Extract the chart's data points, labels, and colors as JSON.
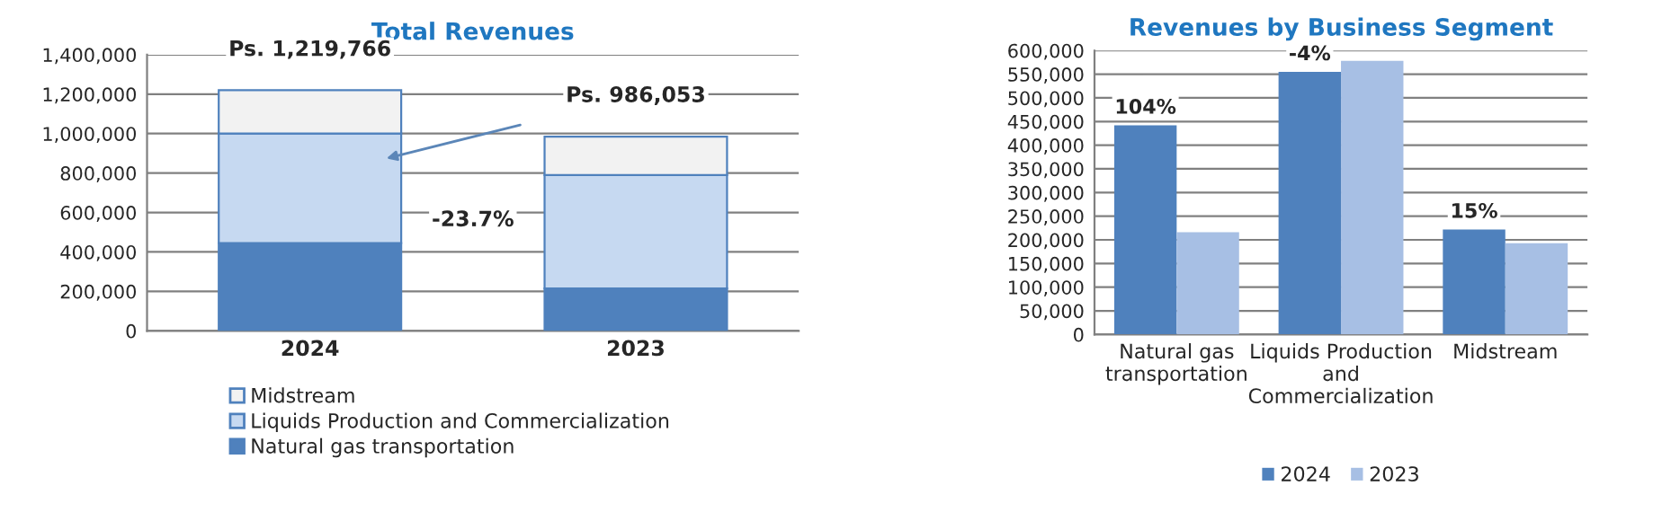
{
  "chart_data": [
    {
      "type": "bar",
      "title": "Total Revenues",
      "stacked": true,
      "categories": [
        "2024",
        "2023"
      ],
      "series": [
        {
          "name": "Natural gas transportation",
          "color": "#4f81bd",
          "values": [
            445000,
            215000
          ]
        },
        {
          "name": "Liquids Production and Commercialization",
          "color": "#c6d9f1",
          "values": [
            555000,
            575000
          ]
        },
        {
          "name": "Midstream",
          "color": "#f2f2f2",
          "values": [
            220000,
            195000
          ]
        }
      ],
      "ylim": [
        0,
        1400000
      ],
      "yticks": [
        0,
        {
          "value": 200000,
          "label": "200,000"
        },
        {
          "value": 400000,
          "label": "400,000"
        },
        {
          "value": 600000,
          "label": "600,000"
        },
        {
          "value": 800000,
          "label": "800,000"
        },
        {
          "value": 1000000,
          "label": "1,000,000"
        },
        {
          "value": 1200000,
          "label": "1,200,000"
        },
        {
          "value": 1400000,
          "label": "1,400,000"
        }
      ],
      "grid": "y",
      "legend": "bottom",
      "annotations": [
        {
          "text": "Ps. 1,219,766",
          "x": "2024",
          "y": 1219766
        },
        {
          "text": "Ps. 986,053",
          "x": "2023",
          "y": 986053
        },
        "-23.7%"
      ]
    },
    {
      "type": "bar",
      "title": "Revenues by Business Segment",
      "categories": [
        "Natural gas\ntransportation",
        "Liquids Production\nand\nCommercialization",
        "Midstream"
      ],
      "series": [
        {
          "name": "2024",
          "color": "#4f81bd",
          "values": [
            442000,
            555000,
            222000
          ]
        },
        {
          "name": "2023",
          "color": "#a7bfe4",
          "values": [
            216000,
            578000,
            193000
          ]
        }
      ],
      "ylim": [
        0,
        600000
      ],
      "yticks": [
        0,
        {
          "value": 50000,
          "label": "50,000"
        },
        {
          "value": 100000,
          "label": "100,000"
        },
        {
          "value": 150000,
          "label": "150,000"
        },
        {
          "value": 200000,
          "label": "200,000"
        },
        {
          "value": 250000,
          "label": "250,000"
        },
        {
          "value": 300000,
          "label": "300,000"
        },
        {
          "value": 350000,
          "label": "350,000"
        },
        {
          "value": 400000,
          "label": "400,000"
        },
        {
          "value": 450000,
          "label": "450,000"
        },
        {
          "value": 500000,
          "label": "500,000"
        },
        {
          "value": 550000,
          "label": "550,000"
        },
        {
          "value": 600000,
          "label": "600,000"
        }
      ],
      "grid": "y",
      "legend": "bottom",
      "annotations": [
        {
          "text": "104%",
          "x": "Natural gas\ntransportation",
          "y": 442000
        },
        {
          "text": "-4%",
          "x": "Liquids Production\nand\nCommercialization",
          "y": 555000
        },
        {
          "text": "15%",
          "x": "Midstream",
          "y": 222000
        }
      ]
    }
  ]
}
